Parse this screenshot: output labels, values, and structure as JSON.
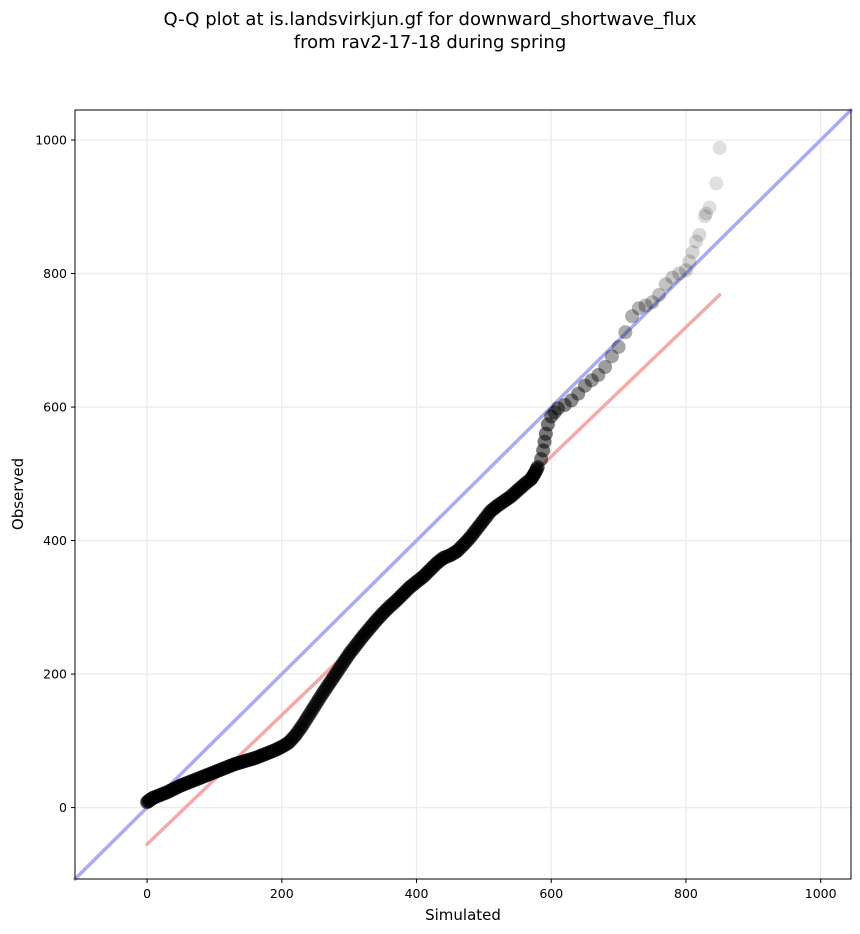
{
  "chart_data": {
    "type": "scatter",
    "title_line1": "Q-Q plot at is.landsvirkjun.gf for downward_shortwave_flux",
    "title_line2": "from rav2-17-18 during spring",
    "xlabel": "Simulated",
    "ylabel": "Observed",
    "xlim": [
      -107,
      1045
    ],
    "ylim": [
      -107,
      1045
    ],
    "x_ticks": [
      0,
      200,
      400,
      600,
      800,
      1000
    ],
    "y_ticks": [
      0,
      200,
      400,
      600,
      800,
      1000
    ],
    "grid": true,
    "reference_line": {
      "name": "1:1 line",
      "color": "#aaaaf5",
      "from": [
        -107,
        -107
      ],
      "to": [
        1045,
        1045
      ]
    },
    "fit_line": {
      "name": "linear fit",
      "color": "#f4aaaa",
      "from": [
        0,
        -55
      ],
      "to": [
        850,
        768
      ]
    },
    "point_color": "#000000",
    "quantiles": {
      "x": [
        0,
        5,
        10,
        20,
        30,
        40,
        50,
        60,
        70,
        80,
        90,
        100,
        110,
        120,
        130,
        140,
        150,
        160,
        170,
        180,
        190,
        200,
        210,
        220,
        230,
        240,
        250,
        260,
        270,
        280,
        290,
        300,
        310,
        320,
        330,
        340,
        350,
        360,
        370,
        380,
        390,
        400,
        410,
        420,
        430,
        440,
        450,
        460,
        470,
        480,
        490,
        500,
        510,
        520,
        530,
        540,
        550,
        560,
        570,
        575,
        580,
        585,
        588,
        590,
        592,
        595,
        600,
        605,
        610,
        620,
        630,
        640,
        650,
        660,
        670,
        680,
        690,
        700,
        710,
        720,
        730,
        740,
        750,
        760,
        770,
        780,
        790,
        800,
        805,
        810,
        815,
        820,
        828,
        830,
        835,
        845,
        850
      ],
      "y": [
        8,
        12,
        15,
        19,
        23,
        28,
        33,
        37,
        41,
        45,
        49,
        53,
        57,
        61,
        65,
        68,
        71,
        74,
        78,
        82,
        86,
        91,
        97,
        108,
        122,
        138,
        154,
        170,
        185,
        200,
        215,
        230,
        243,
        256,
        268,
        280,
        291,
        301,
        310,
        320,
        330,
        338,
        346,
        356,
        366,
        374,
        378,
        384,
        394,
        405,
        418,
        431,
        444,
        452,
        459,
        466,
        475,
        484,
        492,
        500,
        510,
        522,
        535,
        548,
        560,
        574,
        586,
        592,
        598,
        603,
        610,
        620,
        632,
        640,
        648,
        660,
        676,
        690,
        712,
        736,
        748,
        752,
        757,
        768,
        784,
        794,
        800,
        805,
        818,
        832,
        848,
        858,
        886,
        890,
        899,
        935,
        988
      ]
    }
  }
}
